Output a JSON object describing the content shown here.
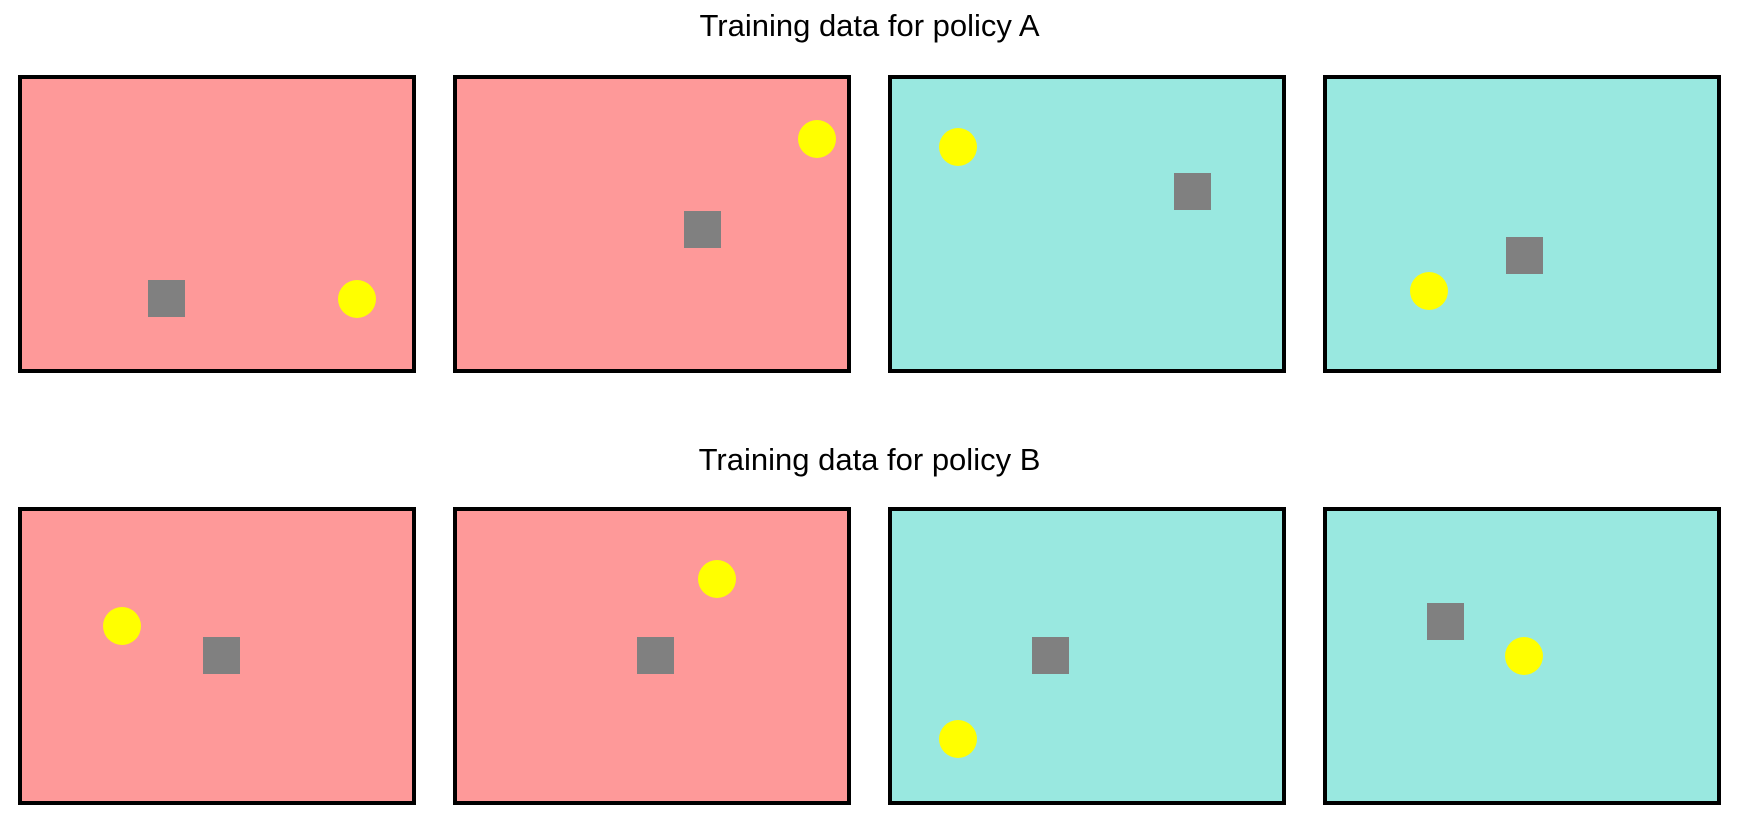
{
  "rows": [
    {
      "title": "Training data for policy A",
      "panels": [
        {
          "background": "#fe9999"
        },
        {
          "background": "#fe9999"
        },
        {
          "background": "#99e8e0"
        },
        {
          "background": "#99e8e0"
        }
      ]
    },
    {
      "title": "Training data for policy B",
      "panels": [
        {
          "background": "#fe9999"
        },
        {
          "background": "#fe9999"
        },
        {
          "background": "#99e8e0"
        },
        {
          "background": "#99e8e0"
        }
      ]
    }
  ],
  "colors": {
    "red_panel": "#fe9999",
    "cyan_panel": "#99e8e0",
    "circle": "#ffff00",
    "square": "#808080",
    "border": "#000000"
  },
  "icons": {
    "circle": "yellow-circle-icon",
    "square": "gray-square-icon"
  }
}
